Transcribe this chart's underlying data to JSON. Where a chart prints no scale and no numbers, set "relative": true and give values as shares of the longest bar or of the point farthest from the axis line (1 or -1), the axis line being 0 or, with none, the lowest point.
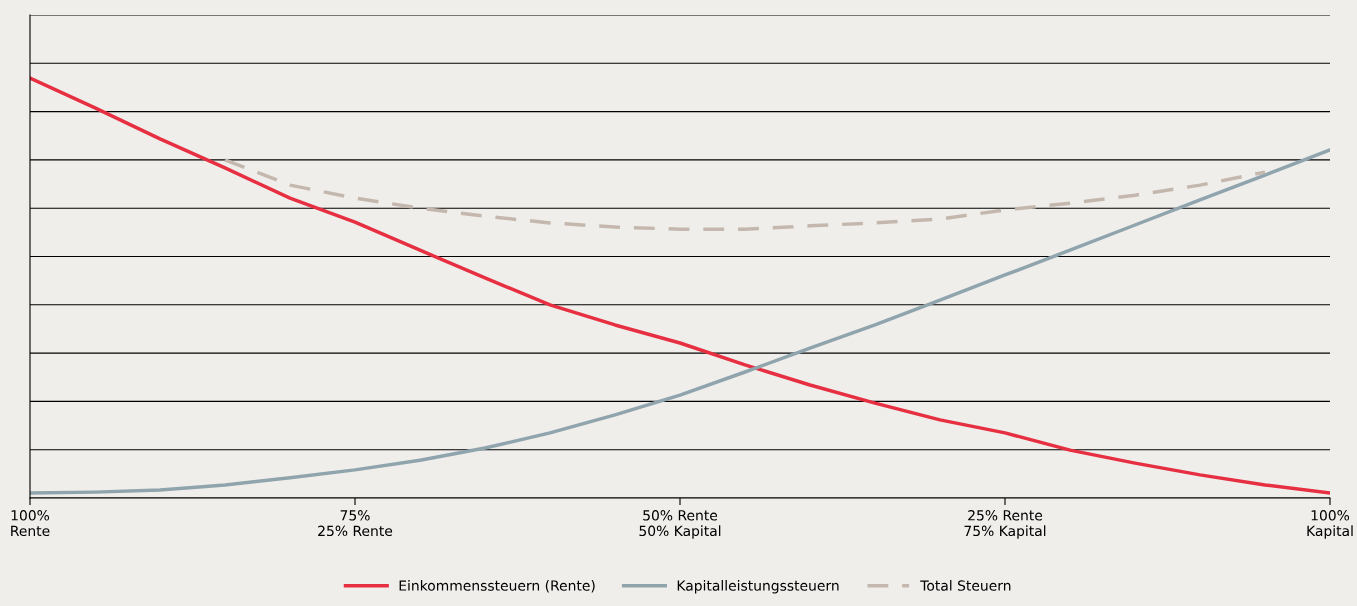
{
  "chart_data": {
    "type": "line",
    "relative": true,
    "grid": "y",
    "legend": "bottom",
    "categories": [
      "100%\nRente",
      null,
      null,
      null,
      null,
      "75%\n25% Rente",
      null,
      null,
      null,
      null,
      "50% Rente\n50% Kapital",
      null,
      null,
      null,
      null,
      "25% Rente\n75% Kapital",
      null,
      null,
      null,
      null,
      "100%\nKapital"
    ],
    "series": [
      {
        "name": "Einkommenssteuern (Rente)",
        "color": "#e63042",
        "line_style": "solid",
        "values": [
          1.0,
          0.929,
          0.855,
          0.786,
          0.714,
          0.657,
          0.59,
          0.524,
          0.46,
          0.412,
          0.369,
          0.317,
          0.269,
          0.226,
          0.186,
          0.155,
          0.114,
          0.083,
          0.055,
          0.031,
          0.012
        ]
      },
      {
        "name": "Kapitalleistungssteuern",
        "color": "#8fa4ad",
        "line_style": "solid",
        "values": [
          0.012,
          0.014,
          0.019,
          0.031,
          0.048,
          0.067,
          0.09,
          0.119,
          0.155,
          0.198,
          0.245,
          0.3,
          0.357,
          0.412,
          0.471,
          0.531,
          0.59,
          0.65,
          0.71,
          0.769,
          0.829
        ]
      },
      {
        "name": "Total Steuern",
        "color": "#c4b8ae",
        "line_style": "dashed",
        "values": [
          null,
          null,
          null,
          0.805,
          0.745,
          0.714,
          0.69,
          0.671,
          0.655,
          0.645,
          0.64,
          0.64,
          0.648,
          0.655,
          0.664,
          0.686,
          0.702,
          0.721,
          0.745,
          0.776,
          null
        ]
      }
    ]
  }
}
